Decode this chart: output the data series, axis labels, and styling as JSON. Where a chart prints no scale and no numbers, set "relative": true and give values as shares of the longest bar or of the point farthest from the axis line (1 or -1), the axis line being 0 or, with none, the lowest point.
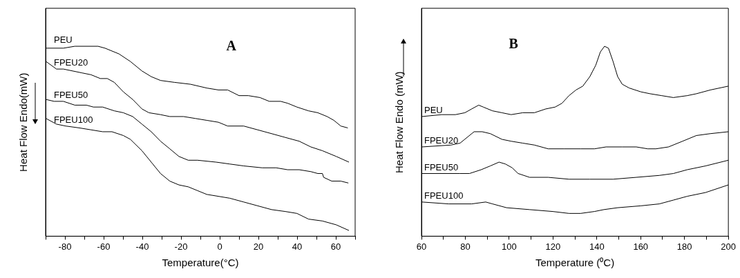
{
  "chart_data": [
    {
      "type": "line",
      "relative": true,
      "xlabel": "Temperature(°C)",
      "ylabel": "Heat Flow Endo(mW)",
      "annotations": [
        "A"
      ],
      "xlim": [
        -90,
        70
      ],
      "xticks": [
        {
          "value": -90,
          "label": null
        },
        -80,
        {
          "value": -70,
          "label": null
        },
        -60,
        {
          "value": -50,
          "label": null
        },
        -40,
        {
          "value": -30,
          "label": null
        },
        -20,
        {
          "value": -10,
          "label": null
        },
        0,
        {
          "value": 10,
          "label": null
        },
        20,
        {
          "value": 30,
          "label": null
        },
        40,
        {
          "value": 50,
          "label": null
        },
        60,
        {
          "value": 70,
          "label": null
        }
      ],
      "tick_labels": "x",
      "grid": false,
      "legend": false,
      "marker": "none",
      "line_style": "solid",
      "series": [
        {
          "name": "PEU",
          "color": "#000000",
          "x": [
            -89.8,
            -80.8,
            -74.9,
            -62.9,
            -59.3,
            -52.1,
            -46.2,
            -40.2,
            -35.4,
            -30.6,
            -23.4,
            -15.1,
            -6.7,
            -0.7,
            4.1,
            10.0,
            14.8,
            20.8,
            25.6,
            31.5,
            35.1,
            39.9,
            45.9,
            50.7,
            55.5,
            59.0,
            62.6,
            66.2
          ],
          "values": [
            0.99,
            0.99,
            1.0,
            1.0,
            0.99,
            0.96,
            0.92,
            0.87,
            0.84,
            0.82,
            0.81,
            0.8,
            0.78,
            0.77,
            0.77,
            0.74,
            0.74,
            0.73,
            0.71,
            0.71,
            0.7,
            0.68,
            0.66,
            0.65,
            0.63,
            0.61,
            0.58,
            0.57
          ]
        },
        {
          "name": "FPEU20",
          "color": "#000000",
          "x": [
            -89.8,
            -84.4,
            -80.8,
            -71.3,
            -66.5,
            -61.7,
            -58.1,
            -54.5,
            -49.8,
            -45.0,
            -40.2,
            -36.6,
            -30.6,
            -25.8,
            -18.7,
            -12.7,
            -6.7,
            -0.7,
            4.1,
            12.4,
            19.6,
            26.8,
            33.9,
            41.1,
            47.1,
            53.1,
            60.2,
            66.8
          ],
          "values": [
            0.92,
            0.88,
            0.88,
            0.86,
            0.85,
            0.83,
            0.83,
            0.81,
            0.76,
            0.72,
            0.67,
            0.65,
            0.64,
            0.63,
            0.63,
            0.62,
            0.61,
            0.6,
            0.58,
            0.58,
            0.56,
            0.54,
            0.52,
            0.5,
            0.47,
            0.45,
            0.42,
            0.39
          ]
        },
        {
          "name": "FPEU50",
          "color": "#000000",
          "x": [
            -89.8,
            -85.6,
            -80.8,
            -74.9,
            -68.9,
            -65.3,
            -60.5,
            -54.5,
            -49.8,
            -45.0,
            -40.2,
            -35.4,
            -30.6,
            -25.8,
            -21.1,
            -16.3,
            -11.5,
            -1.9,
            5.2,
            12.4,
            22.0,
            29.2,
            35.1,
            41.1,
            47.1,
            50.7,
            53.1,
            53.7,
            57.9,
            62.6,
            66.5
          ],
          "values": [
            0.72,
            0.71,
            0.71,
            0.69,
            0.69,
            0.68,
            0.68,
            0.66,
            0.65,
            0.63,
            0.59,
            0.55,
            0.5,
            0.46,
            0.42,
            0.4,
            0.4,
            0.39,
            0.38,
            0.37,
            0.36,
            0.36,
            0.35,
            0.35,
            0.34,
            0.33,
            0.33,
            0.31,
            0.29,
            0.29,
            0.28
          ]
        },
        {
          "name": "FPEU100",
          "color": "#000000",
          "x": [
            -89.8,
            -84.4,
            -79.6,
            -72.5,
            -66.5,
            -60.5,
            -55.7,
            -49.8,
            -46.2,
            -40.2,
            -35.4,
            -30.6,
            -25.8,
            -21.1,
            -16.3,
            -11.5,
            -6.7,
            -0.7,
            5.2,
            12.4,
            19.6,
            26.8,
            33.9,
            39.9,
            45.9,
            53.1,
            60.2,
            66.8
          ],
          "values": [
            0.62,
            0.59,
            0.58,
            0.57,
            0.56,
            0.55,
            0.55,
            0.53,
            0.51,
            0.45,
            0.39,
            0.33,
            0.29,
            0.27,
            0.26,
            0.24,
            0.22,
            0.21,
            0.2,
            0.18,
            0.16,
            0.14,
            0.13,
            0.12,
            0.09,
            0.08,
            0.06,
            0.03
          ]
        }
      ]
    },
    {
      "type": "line",
      "relative": true,
      "xlabel": "Temperature (⁰C)",
      "ylabel": "Heat Flow Endo (mW)",
      "annotations": [
        "B"
      ],
      "xlim": [
        60,
        200
      ],
      "xticks": [
        60,
        {
          "value": 70,
          "label": null
        },
        80,
        {
          "value": 90,
          "label": null
        },
        100,
        {
          "value": 110,
          "label": null
        },
        120,
        {
          "value": 130,
          "label": null
        },
        140,
        {
          "value": 150,
          "label": null
        },
        160,
        {
          "value": 170,
          "label": null
        },
        180,
        {
          "value": 190,
          "label": null
        },
        200
      ],
      "tick_labels": "x",
      "grid": false,
      "legend": false,
      "marker": "none",
      "line_style": "solid",
      "series": [
        {
          "name": "PEU",
          "color": "#000000",
          "x": [
            60.2,
            69.2,
            75.5,
            79.8,
            82.9,
            86.1,
            88.2,
            92.4,
            96.7,
            100.9,
            106.2,
            111.5,
            116.7,
            121.0,
            124.1,
            127.3,
            130.5,
            133.6,
            136.8,
            139.5,
            141.6,
            143.5,
            145.3,
            147.4,
            149.5,
            151.6,
            154.8,
            160.1,
            164.3,
            169.6,
            174.9,
            181.2,
            185.4,
            191.8,
            200.0
          ],
          "values": [
            0.63,
            0.64,
            0.64,
            0.65,
            0.67,
            0.69,
            0.68,
            0.66,
            0.65,
            0.64,
            0.65,
            0.65,
            0.67,
            0.68,
            0.7,
            0.74,
            0.77,
            0.79,
            0.84,
            0.9,
            0.97,
            1.0,
            0.99,
            0.92,
            0.84,
            0.8,
            0.78,
            0.76,
            0.75,
            0.74,
            0.73,
            0.74,
            0.75,
            0.77,
            0.79
          ]
        },
        {
          "name": "FPEU20",
          "color": "#000000",
          "x": [
            60.2,
            73.4,
            77.6,
            80.8,
            84.0,
            87.7,
            91.4,
            96.7,
            100.9,
            106.2,
            111.5,
            117.8,
            125.2,
            132.6,
            138.9,
            144.2,
            151.6,
            158.0,
            163.2,
            166.9,
            172.7,
            179.1,
            185.4,
            191.8,
            200.0
          ],
          "values": [
            0.47,
            0.48,
            0.49,
            0.52,
            0.55,
            0.55,
            0.54,
            0.51,
            0.5,
            0.49,
            0.48,
            0.46,
            0.46,
            0.46,
            0.46,
            0.47,
            0.47,
            0.47,
            0.46,
            0.46,
            0.47,
            0.5,
            0.53,
            0.54,
            0.55
          ]
        },
        {
          "name": "FPEU50",
          "color": "#000000",
          "x": [
            60.2,
            77.6,
            81.9,
            87.2,
            91.4,
            95.4,
            98.3,
            101.4,
            104.1,
            109.3,
            117.8,
            127.3,
            136.8,
            147.4,
            158.0,
            168.5,
            174.9,
            181.2,
            189.6,
            200.0
          ],
          "values": [
            0.33,
            0.33,
            0.33,
            0.35,
            0.37,
            0.39,
            0.38,
            0.36,
            0.33,
            0.31,
            0.31,
            0.3,
            0.3,
            0.3,
            0.31,
            0.32,
            0.33,
            0.35,
            0.37,
            0.4
          ]
        },
        {
          "name": "FPEU100",
          "color": "#000000",
          "x": [
            60.2,
            72.4,
            82.9,
            89.3,
            92.4,
            98.8,
            109.3,
            119.9,
            127.3,
            132.6,
            138.9,
            143.2,
            149.5,
            160.1,
            168.5,
            174.9,
            181.2,
            189.6,
            200.0
          ],
          "values": [
            0.18,
            0.17,
            0.17,
            0.18,
            0.17,
            0.15,
            0.14,
            0.13,
            0.12,
            0.12,
            0.13,
            0.14,
            0.15,
            0.16,
            0.17,
            0.19,
            0.21,
            0.23,
            0.27
          ]
        }
      ]
    }
  ]
}
